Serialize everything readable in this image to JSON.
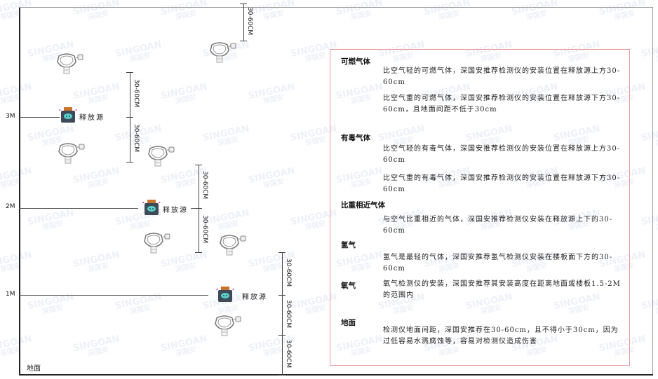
{
  "levels": [
    "3M",
    "2M",
    "1M"
  ],
  "ground_label": "地面",
  "dimension_label": "30-60CM",
  "source_label": "释放源",
  "watermark": {
    "brand": "SINGOAN",
    "sub": "深国安"
  },
  "colors": {
    "panel_border": "#e89a9a",
    "source_body": "#3d4a58",
    "source_cap": "#c8742a",
    "source_face": "#5ad0c8"
  },
  "panel": {
    "sections": [
      {
        "title": "可燃气体",
        "paragraphs": [
          "比空气轻的可燃气体，深国安推荐检测仪的安装位置在释放源上方30-60cm",
          "比空气重的可燃气体，深国安推荐检测仪的安装位置在释放源下方30-60cm，且地面间距不低于30cm"
        ]
      },
      {
        "title": "有毒气体",
        "paragraphs": [
          "比空气轻的有毒气体，深国安推荐检测仪的安装位置在释放源上方30-60cm",
          "比空气重的有毒气体，深国安推荐检测仪的安装位置在释放源下方30-60cm"
        ]
      },
      {
        "title": "比重相近气体",
        "paragraphs": [
          "与空气比重相近的气体，深国安推荐检测仪安装在释放源上下的30-60cm"
        ]
      },
      {
        "title": "氢气",
        "paragraphs": [
          "氢气是最轻的气体，深国安推荐氢气检测仪安装在楼板面下方的30-60cm"
        ]
      },
      {
        "title": "氧气",
        "paragraphs": [
          "氧气检测仪的安装，深国安推荐其安装高度在距离地面或楼板1.5-2M的范围内"
        ]
      },
      {
        "title": "地面",
        "paragraphs": [
          "检测仪地面间距，深国安推荐在30-60cm，且不得小于30cm，因为过低容易水溅腐蚀等，容易对检测仪造成伤害"
        ]
      }
    ]
  }
}
